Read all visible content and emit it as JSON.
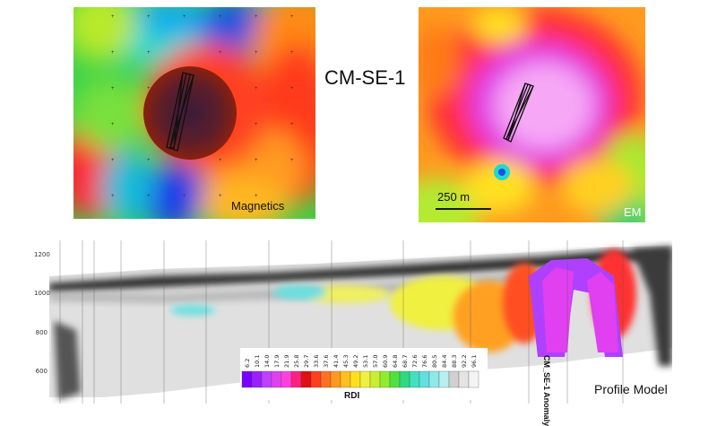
{
  "title": "CM-SE-1",
  "magnetics_label": "Magnetics",
  "em_label": "EM",
  "scale_text": "250 m",
  "profile_label": "Profile Model",
  "anomaly_label": "CM_SE-1 Anomaly",
  "rdi_label": "RDI",
  "elevation_ticks": [
    "1200",
    "1000",
    "800",
    "600"
  ],
  "rdi_values": [
    "6.2",
    "10.1",
    "14.0",
    "17.9",
    "21.9",
    "25.8",
    "29.7",
    "33.6",
    "37.6",
    "41.4",
    "45.3",
    "49.2",
    "53.1",
    "57.0",
    "60.9",
    "64.8",
    "68.7",
    "72.6",
    "76.6",
    "80.5",
    "84.4",
    "88.3",
    "92.2",
    "96.1"
  ],
  "colors": {
    "low": "#7a00ff",
    "mid": "#33ff33",
    "high": "#ff2020",
    "peak": "#ff60ff"
  }
}
